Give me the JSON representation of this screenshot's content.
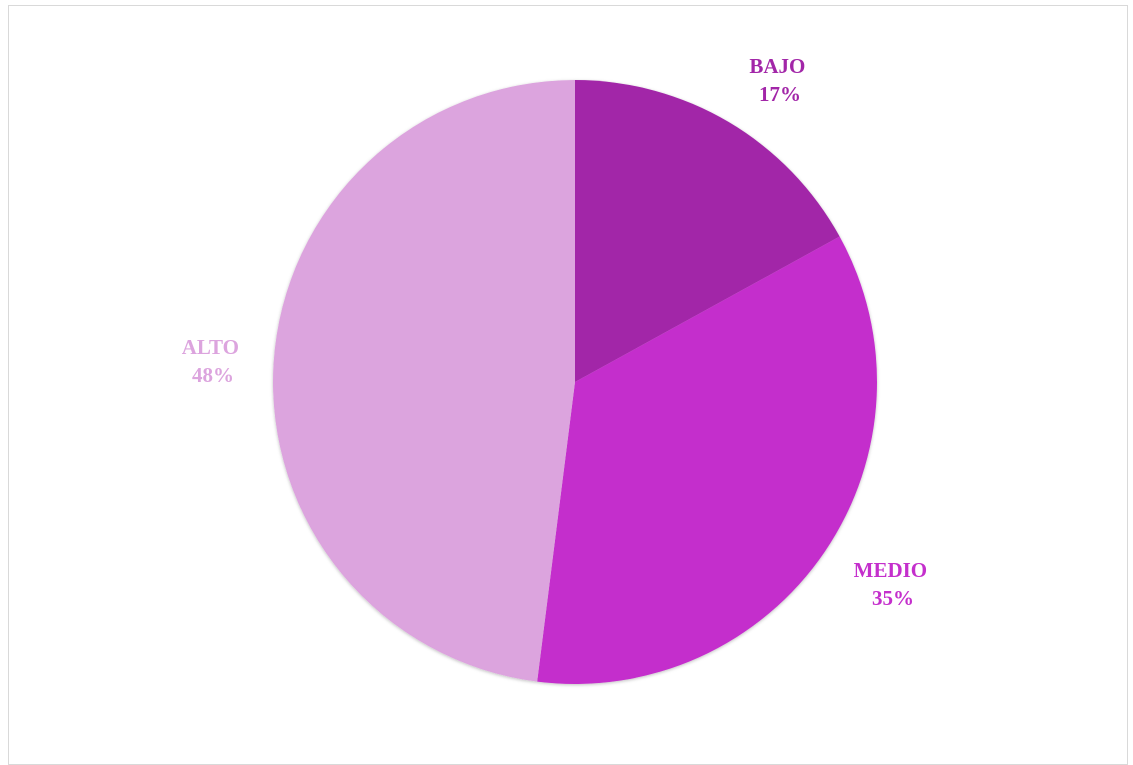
{
  "chart_data": {
    "type": "pie",
    "title": "",
    "categories": [
      "BAJO",
      "MEDIO",
      "ALTO"
    ],
    "values": [
      17,
      35,
      48
    ],
    "value_labels": [
      "17%",
      "35%",
      "48%"
    ],
    "colors": [
      "#A226A8",
      "#C42FCC",
      "#DCA4DE"
    ],
    "start_angle": "12 o'clock",
    "direction": "clockwise",
    "legend": "none",
    "data_labels": "outside, category and percentage"
  }
}
